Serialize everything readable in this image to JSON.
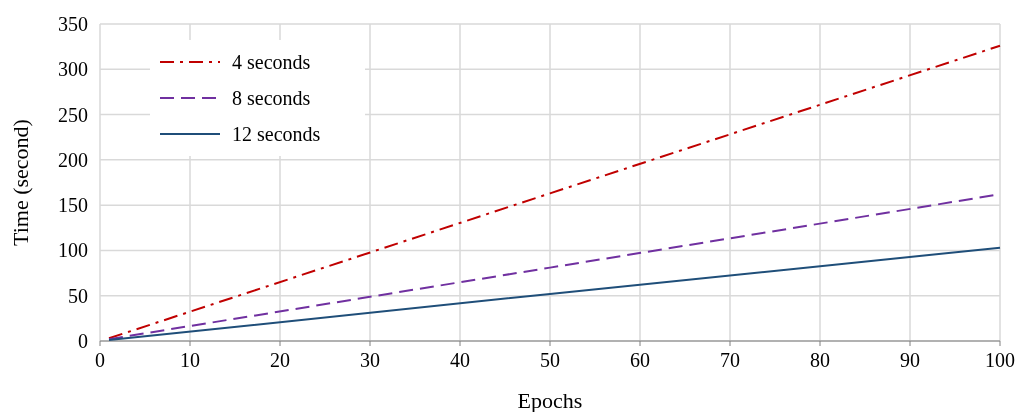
{
  "chart_data": {
    "type": "line",
    "xlabel": "Epochs",
    "ylabel": "Time (second)",
    "x": [
      1,
      50,
      100
    ],
    "series": [
      {
        "name": "4 seconds",
        "color": "#c00000",
        "values": [
          3,
          163,
          326
        ],
        "line_style": "dashdot"
      },
      {
        "name": "8 seconds",
        "color": "#7030a0",
        "values": [
          2,
          81,
          162
        ],
        "line_style": "dashed"
      },
      {
        "name": "12 seconds",
        "color": "#1f4e79",
        "values": [
          1,
          52,
          103
        ],
        "line_style": "solid"
      }
    ],
    "xlim": [
      0,
      100
    ],
    "xticks": [
      0,
      10,
      20,
      30,
      40,
      50,
      60,
      70,
      80,
      90,
      100
    ],
    "ylim": [
      0,
      350
    ],
    "yticks": [
      0,
      50,
      100,
      150,
      200,
      250,
      300,
      350
    ],
    "grid": true,
    "legend": "top left",
    "marker": "none"
  }
}
